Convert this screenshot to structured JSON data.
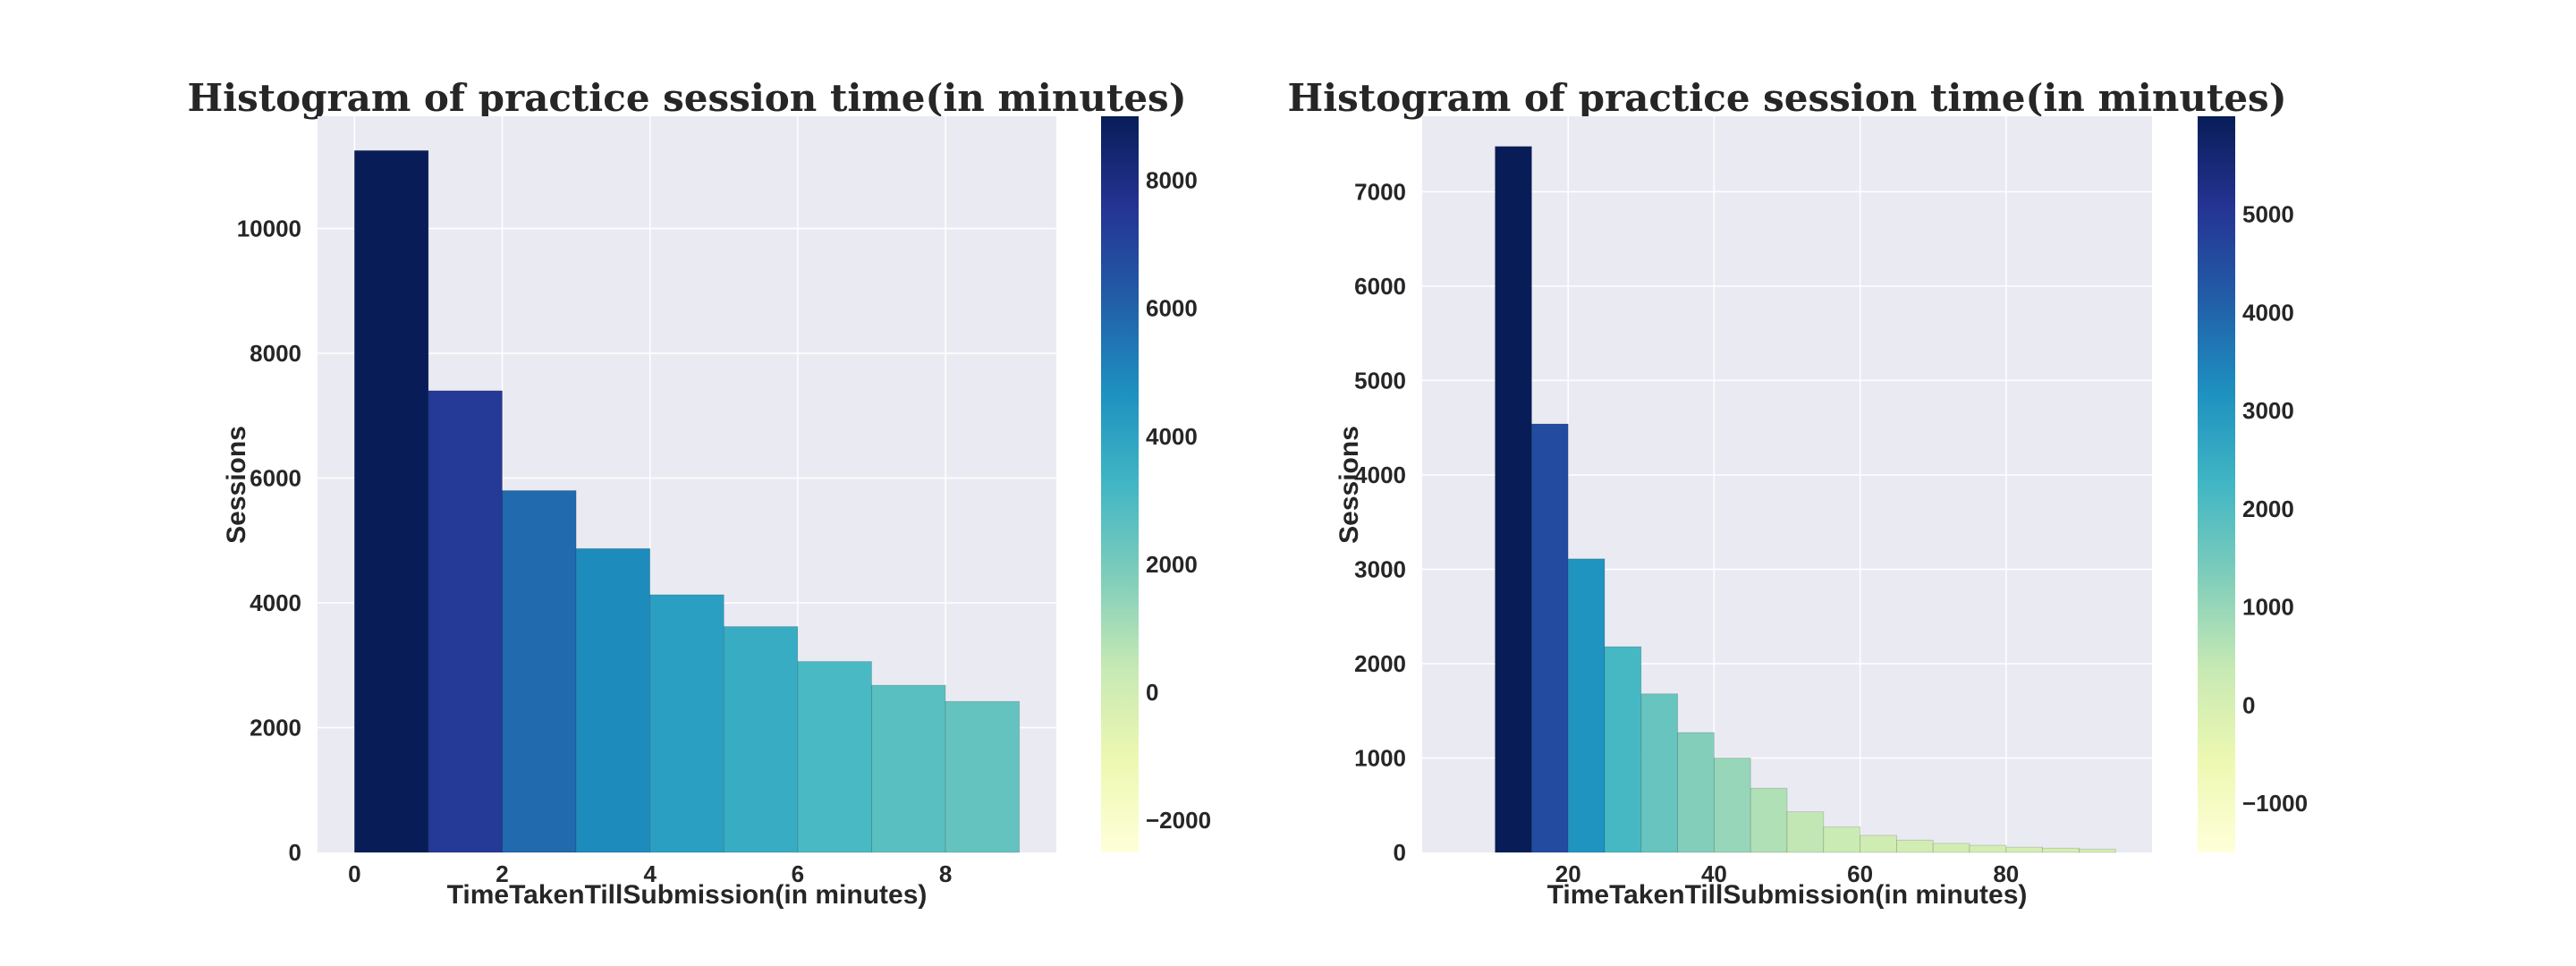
{
  "chart_data": [
    {
      "type": "bar",
      "title": "Histogram of practice session time(in minutes)",
      "xlabel": "TimeTakenTillSubmission(in minutes)",
      "ylabel": "Sessions",
      "bin_edges": [
        0,
        1,
        2,
        3,
        4,
        5,
        6,
        7,
        8,
        9
      ],
      "values": [
        11250,
        7400,
        5800,
        4870,
        4130,
        3620,
        3060,
        2680,
        2420
      ],
      "xlim": [
        -0.5,
        9.5
      ],
      "ylim": [
        0,
        11800
      ],
      "xticks": [
        0,
        2,
        4,
        6,
        8
      ],
      "yticks": [
        0,
        2000,
        4000,
        6000,
        8000,
        10000
      ],
      "grid": true,
      "colorbar": {
        "cmap": "YlGnBu",
        "range": [
          -2500,
          9000
        ],
        "ticks": [
          -2000,
          0,
          2000,
          4000,
          6000,
          8000
        ]
      }
    },
    {
      "type": "bar",
      "title": "Histogram of practice session time(in minutes)",
      "xlabel": "TimeTakenTillSubmission(in minutes)",
      "ylabel": "Sessions",
      "bin_edges": [
        10,
        15,
        20,
        25,
        30,
        35,
        40,
        45,
        50,
        55,
        60,
        65,
        70,
        75,
        80,
        85,
        90,
        95
      ],
      "values": [
        7480,
        4540,
        3110,
        2180,
        1680,
        1270,
        1000,
        680,
        430,
        270,
        180,
        130,
        95,
        75,
        55,
        45,
        35
      ],
      "xlim": [
        0,
        100
      ],
      "ylim": [
        0,
        7800
      ],
      "xticks": [
        20,
        40,
        60,
        80
      ],
      "yticks": [
        0,
        1000,
        2000,
        3000,
        4000,
        5000,
        6000,
        7000
      ],
      "grid": true,
      "colorbar": {
        "cmap": "YlGnBu",
        "range": [
          -1500,
          6000
        ],
        "ticks": [
          -1000,
          0,
          1000,
          2000,
          3000,
          4000,
          5000
        ]
      }
    }
  ]
}
